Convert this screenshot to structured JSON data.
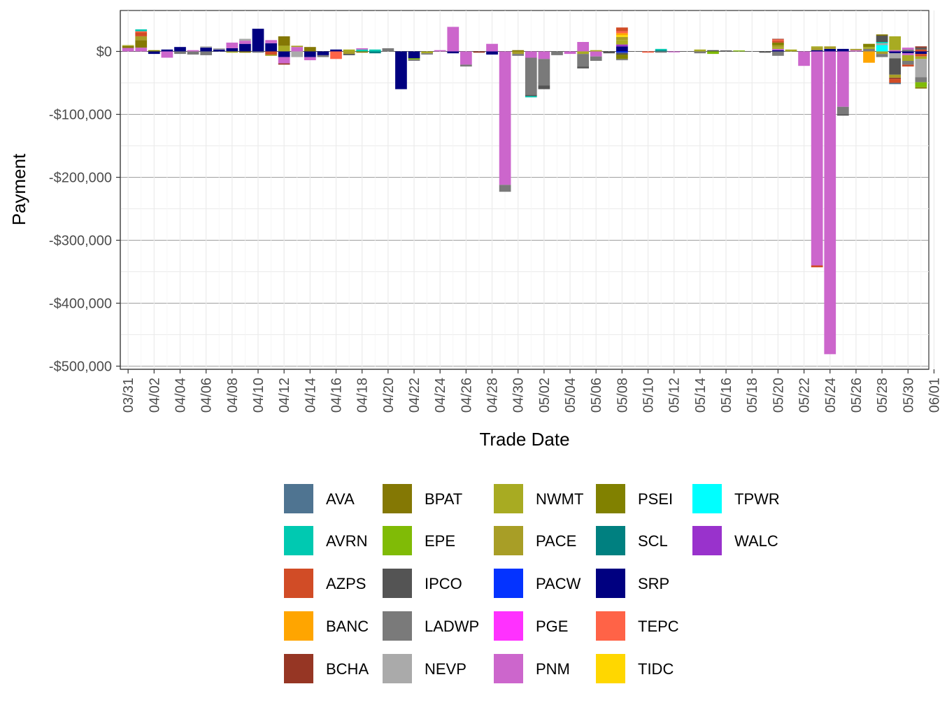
{
  "chart_data": {
    "type": "bar",
    "stacked": true,
    "xlabel": "Trade Date",
    "ylabel": "Payment",
    "ylim": [
      -505000,
      65000
    ],
    "y_ticks": [
      0,
      -100000,
      -200000,
      -300000,
      -400000,
      -500000
    ],
    "y_tick_labels": [
      "$0",
      "-$100,000",
      "-$200,000",
      "-$300,000",
      "-$400,000",
      "-$500,000"
    ],
    "x_tick_labels": [
      "03/31",
      "04/02",
      "04/04",
      "04/06",
      "04/08",
      "04/10",
      "04/12",
      "04/14",
      "04/16",
      "04/18",
      "04/20",
      "04/22",
      "04/24",
      "04/26",
      "04/28",
      "04/30",
      "05/02",
      "05/04",
      "05/06",
      "05/08",
      "05/10",
      "05/12",
      "05/14",
      "05/16",
      "05/18",
      "05/20",
      "05/22",
      "05/24",
      "05/26",
      "05/28",
      "05/30",
      "06/01"
    ],
    "grid": true,
    "legend_position": "bottom",
    "legend": [
      {
        "name": "AVA",
        "color": "#4f7491"
      },
      {
        "name": "AVRN",
        "color": "#00c9b1"
      },
      {
        "name": "AZPS",
        "color": "#d14c26"
      },
      {
        "name": "BANC",
        "color": "#ffa500"
      },
      {
        "name": "BCHA",
        "color": "#963624"
      },
      {
        "name": "BPAT",
        "color": "#847804"
      },
      {
        "name": "EPE",
        "color": "#80bb06"
      },
      {
        "name": "IPCO",
        "color": "#545454"
      },
      {
        "name": "LADWP",
        "color": "#7a7a7a"
      },
      {
        "name": "NEVP",
        "color": "#aaaaaa"
      },
      {
        "name": "NWMT",
        "color": "#a8ab22"
      },
      {
        "name": "PACE",
        "color": "#a89e26"
      },
      {
        "name": "PACW",
        "color": "#0433ff"
      },
      {
        "name": "PGE",
        "color": "#ff31ff"
      },
      {
        "name": "PNM",
        "color": "#cc66cc"
      },
      {
        "name": "PSEI",
        "color": "#818100"
      },
      {
        "name": "SCL",
        "color": "#008080"
      },
      {
        "name": "SRP",
        "color": "#000080"
      },
      {
        "name": "TEPC",
        "color": "#ff6347"
      },
      {
        "name": "TIDC",
        "color": "#ffd700"
      },
      {
        "name": "TPWR",
        "color": "#00ffff"
      },
      {
        "name": "WALC",
        "color": "#9932cc"
      }
    ],
    "bars": [
      {
        "date": "03/31",
        "segments": [
          [
            "PNM",
            5500
          ],
          [
            "BPAT",
            3000
          ],
          [
            "NWMT",
            1500
          ]
        ]
      },
      {
        "date": "04/01",
        "segments": [
          [
            "PNM",
            6000
          ],
          [
            "BPAT",
            12000
          ],
          [
            "PACE",
            6000
          ],
          [
            "AZPS",
            6000
          ],
          [
            "TEPC",
            2000
          ],
          [
            "AVRN",
            3000
          ]
        ]
      },
      {
        "date": "04/02",
        "segments": [
          [
            "SRP",
            -4000
          ],
          [
            "PSEI",
            2000
          ]
        ]
      },
      {
        "date": "04/03",
        "segments": [
          [
            "PNM",
            -10000
          ],
          [
            "SRP",
            3000
          ]
        ]
      },
      {
        "date": "04/04",
        "segments": [
          [
            "SRP",
            7000
          ],
          [
            "LADWP",
            -4000
          ]
        ]
      },
      {
        "date": "04/05",
        "segments": [
          [
            "LADWP",
            -5000
          ],
          [
            "PNM",
            2000
          ]
        ]
      },
      {
        "date": "04/06",
        "segments": [
          [
            "SRP",
            6000
          ],
          [
            "LADWP",
            -6000
          ],
          [
            "NEVP",
            2000
          ]
        ]
      },
      {
        "date": "04/07",
        "segments": [
          [
            "SRP",
            3000
          ],
          [
            "NEVP",
            2000
          ]
        ]
      },
      {
        "date": "04/08",
        "segments": [
          [
            "SRP",
            5000
          ],
          [
            "PNM",
            9000
          ],
          [
            "NWMT",
            -2000
          ]
        ]
      },
      {
        "date": "04/09",
        "segments": [
          [
            "SRP",
            12000
          ],
          [
            "PNM",
            5000
          ],
          [
            "NEVP",
            3000
          ],
          [
            "BPAT",
            -2000
          ]
        ]
      },
      {
        "date": "04/10",
        "segments": [
          [
            "SRP",
            36000
          ],
          [
            "LADWP",
            -2000
          ]
        ]
      },
      {
        "date": "04/11",
        "segments": [
          [
            "SRP",
            13000
          ],
          [
            "PNM",
            5000
          ],
          [
            "AZPS",
            -5000
          ],
          [
            "PACE",
            -2000
          ]
        ]
      },
      {
        "date": "04/12",
        "segments": [
          [
            "NWMT",
            9000
          ],
          [
            "BPAT",
            15000
          ],
          [
            "SRP",
            -9000
          ],
          [
            "PNM",
            -10000
          ],
          [
            "BCHA",
            -2000
          ]
        ]
      },
      {
        "date": "04/13",
        "segments": [
          [
            "PNM",
            7000
          ],
          [
            "NEVP",
            -9000
          ],
          [
            "PACE",
            2000
          ]
        ]
      },
      {
        "date": "04/14",
        "segments": [
          [
            "SRP",
            -9000
          ],
          [
            "BPAT",
            7000
          ],
          [
            "PNM",
            -5000
          ]
        ]
      },
      {
        "date": "04/15",
        "segments": [
          [
            "SRP",
            -6000
          ],
          [
            "LADWP",
            -3000
          ]
        ]
      },
      {
        "date": "04/16",
        "segments": [
          [
            "TEPC",
            -12000
          ],
          [
            "SRP",
            3000
          ]
        ]
      },
      {
        "date": "04/17",
        "segments": [
          [
            "PACE",
            -4000
          ],
          [
            "IPCO",
            -2000
          ],
          [
            "NWMT",
            3000
          ]
        ]
      },
      {
        "date": "04/18",
        "segments": [
          [
            "BPAT",
            -2000
          ],
          [
            "AVRN",
            3000
          ],
          [
            "PNM",
            2000
          ]
        ]
      },
      {
        "date": "04/19",
        "segments": [
          [
            "SCL",
            -3000
          ],
          [
            "AVRN",
            3000
          ]
        ]
      },
      {
        "date": "04/20",
        "segments": [
          [
            "LADWP",
            5000
          ]
        ]
      },
      {
        "date": "04/21",
        "segments": [
          [
            "SRP",
            -60000
          ]
        ]
      },
      {
        "date": "04/22",
        "segments": [
          [
            "SRP",
            -11000
          ],
          [
            "EPE",
            -2000
          ],
          [
            "LADWP",
            -2000
          ]
        ]
      },
      {
        "date": "04/23",
        "segments": [
          [
            "NWMT",
            -3000
          ],
          [
            "LADWP",
            -2000
          ]
        ]
      },
      {
        "date": "04/24",
        "segments": [
          [
            "PNM",
            2000
          ]
        ]
      },
      {
        "date": "04/25",
        "segments": [
          [
            "PNM",
            39000
          ],
          [
            "SRP",
            -3000
          ]
        ]
      },
      {
        "date": "04/26",
        "segments": [
          [
            "PNM",
            -21000
          ],
          [
            "LADWP",
            -3000
          ]
        ]
      },
      {
        "date": "04/27",
        "segments": [
          [
            "BCHA",
            -2000
          ]
        ]
      },
      {
        "date": "04/28",
        "segments": [
          [
            "PNM",
            12000
          ],
          [
            "SRP",
            -5000
          ]
        ]
      },
      {
        "date": "04/29",
        "segments": [
          [
            "PNM",
            -212000
          ],
          [
            "LADWP",
            -11000
          ]
        ]
      },
      {
        "date": "04/30",
        "segments": [
          [
            "PACE",
            -4000
          ],
          [
            "LADWP",
            -3000
          ],
          [
            "BPAT",
            2000
          ]
        ]
      },
      {
        "date": "05/01",
        "segments": [
          [
            "PNM",
            -10000
          ],
          [
            "LADWP",
            -59000
          ],
          [
            "IPCO",
            -2000
          ],
          [
            "AVRN",
            -2000
          ]
        ]
      },
      {
        "date": "05/02",
        "segments": [
          [
            "PNM",
            -12000
          ],
          [
            "LADWP",
            -42000
          ],
          [
            "IPCO",
            -6000
          ]
        ]
      },
      {
        "date": "05/03",
        "segments": [
          [
            "LADWP",
            -6000
          ]
        ]
      },
      {
        "date": "05/04",
        "segments": [
          [
            "PNM",
            -4000
          ]
        ]
      },
      {
        "date": "05/05",
        "segments": [
          [
            "PNM",
            15000
          ],
          [
            "NWMT",
            -4000
          ],
          [
            "LADWP",
            -20000
          ],
          [
            "IPCO",
            -3000
          ]
        ]
      },
      {
        "date": "05/06",
        "segments": [
          [
            "PNM",
            -8000
          ],
          [
            "LADWP",
            -7000
          ],
          [
            "NWMT",
            2000
          ]
        ]
      },
      {
        "date": "05/07",
        "segments": [
          [
            "IPCO",
            -3000
          ]
        ]
      },
      {
        "date": "05/08",
        "segments": [
          [
            "SRP",
            8000
          ],
          [
            "WALC",
            3000
          ],
          [
            "NWMT",
            7000
          ],
          [
            "PACE",
            5000
          ],
          [
            "TIDC",
            3000
          ],
          [
            "BANC",
            3000
          ],
          [
            "TEPC",
            3000
          ],
          [
            "AZPS",
            6000
          ],
          [
            "PACW",
            -2000
          ],
          [
            "IPCO",
            -3000
          ],
          [
            "PSEI",
            -7000
          ],
          [
            "LADWP",
            -2000
          ]
        ]
      },
      {
        "date": "05/09",
        "segments": []
      },
      {
        "date": "05/10",
        "segments": [
          [
            "TEPC",
            -2000
          ]
        ]
      },
      {
        "date": "05/11",
        "segments": [
          [
            "SCL",
            2000
          ],
          [
            "AVRN",
            2000
          ],
          [
            "LADWP",
            -2000
          ]
        ]
      },
      {
        "date": "05/12",
        "segments": [
          [
            "PNM",
            -1500
          ]
        ]
      },
      {
        "date": "05/13",
        "segments": []
      },
      {
        "date": "05/14",
        "segments": [
          [
            "NWMT",
            3000
          ],
          [
            "LADWP",
            -3000
          ]
        ]
      },
      {
        "date": "05/15",
        "segments": [
          [
            "EPE",
            -4000
          ],
          [
            "IPCO",
            2000
          ]
        ]
      },
      {
        "date": "05/16",
        "segments": [
          [
            "IPCO",
            1500
          ]
        ]
      },
      {
        "date": "05/17",
        "segments": [
          [
            "EPE",
            1500
          ]
        ]
      },
      {
        "date": "05/18",
        "segments": []
      },
      {
        "date": "05/19",
        "segments": [
          [
            "IPCO",
            -2000
          ]
        ]
      },
      {
        "date": "05/20",
        "segments": [
          [
            "SRP",
            2000
          ],
          [
            "PNM",
            2000
          ],
          [
            "NWMT",
            3000
          ],
          [
            "PACE",
            3000
          ],
          [
            "PSEI",
            4000
          ],
          [
            "AZPS",
            3000
          ],
          [
            "TEPC",
            2000
          ],
          [
            "BCHA",
            1000
          ],
          [
            "LADWP",
            -7000
          ]
        ]
      },
      {
        "date": "05/21",
        "segments": [
          [
            "NWMT",
            3000
          ]
        ]
      },
      {
        "date": "05/22",
        "segments": [
          [
            "PNM",
            -23000
          ]
        ]
      },
      {
        "date": "05/23",
        "segments": [
          [
            "SRP",
            2000
          ],
          [
            "PACE",
            4000
          ],
          [
            "NWMT",
            2000
          ],
          [
            "PNM",
            -340000
          ],
          [
            "AZPS",
            -3000
          ]
        ]
      },
      {
        "date": "05/24",
        "segments": [
          [
            "SRP",
            4000
          ],
          [
            "PACE",
            4000
          ],
          [
            "PNM",
            -481000
          ]
        ]
      },
      {
        "date": "05/25",
        "segments": [
          [
            "SRP",
            4000
          ],
          [
            "PNM",
            -88000
          ],
          [
            "LADWP",
            -12000
          ],
          [
            "IPCO",
            -2000
          ]
        ]
      },
      {
        "date": "05/26",
        "segments": [
          [
            "PNM",
            2000
          ],
          [
            "PACE",
            2000
          ]
        ]
      },
      {
        "date": "05/27",
        "segments": [
          [
            "BANC",
            -18000
          ],
          [
            "LADWP",
            4000
          ],
          [
            "NWMT",
            3000
          ],
          [
            "PSEI",
            5000
          ]
        ]
      },
      {
        "date": "05/28",
        "segments": [
          [
            "TPWR",
            10000
          ],
          [
            "NEVP",
            3000
          ],
          [
            "AVRN",
            2000
          ],
          [
            "IPCO",
            10000
          ],
          [
            "BPAT",
            2000
          ],
          [
            "PACE",
            -4000
          ],
          [
            "LADWP",
            -5000
          ]
        ]
      },
      {
        "date": "05/29",
        "segments": [
          [
            "PNM",
            2000
          ],
          [
            "NWMT",
            22000
          ],
          [
            "SRP",
            -3000
          ],
          [
            "NEVP",
            -8000
          ],
          [
            "IPCO",
            -26000
          ],
          [
            "PACE",
            -5000
          ],
          [
            "BCHA",
            -2000
          ],
          [
            "AZPS",
            -6000
          ],
          [
            "AVA",
            -2000
          ]
        ]
      },
      {
        "date": "05/30",
        "segments": [
          [
            "LADWP",
            3000
          ],
          [
            "PNM",
            3000
          ],
          [
            "SRP",
            -3000
          ],
          [
            "PNM",
            -3000
          ],
          [
            "NWMT",
            -9000
          ],
          [
            "LADWP",
            -6000
          ],
          [
            "AZPS",
            -3000
          ]
        ]
      },
      {
        "date": "05/31",
        "segments": [
          [
            "AZPS",
            3000
          ],
          [
            "IPCO",
            3000
          ],
          [
            "BCHA",
            2000
          ],
          [
            "SRP",
            -4000
          ],
          [
            "AZPS",
            -4000
          ],
          [
            "NWMT",
            -4000
          ],
          [
            "NEVP",
            -29000
          ],
          [
            "LADWP",
            -8000
          ],
          [
            "EPE",
            -8000
          ],
          [
            "BPAT",
            -2000
          ]
        ]
      }
    ]
  }
}
